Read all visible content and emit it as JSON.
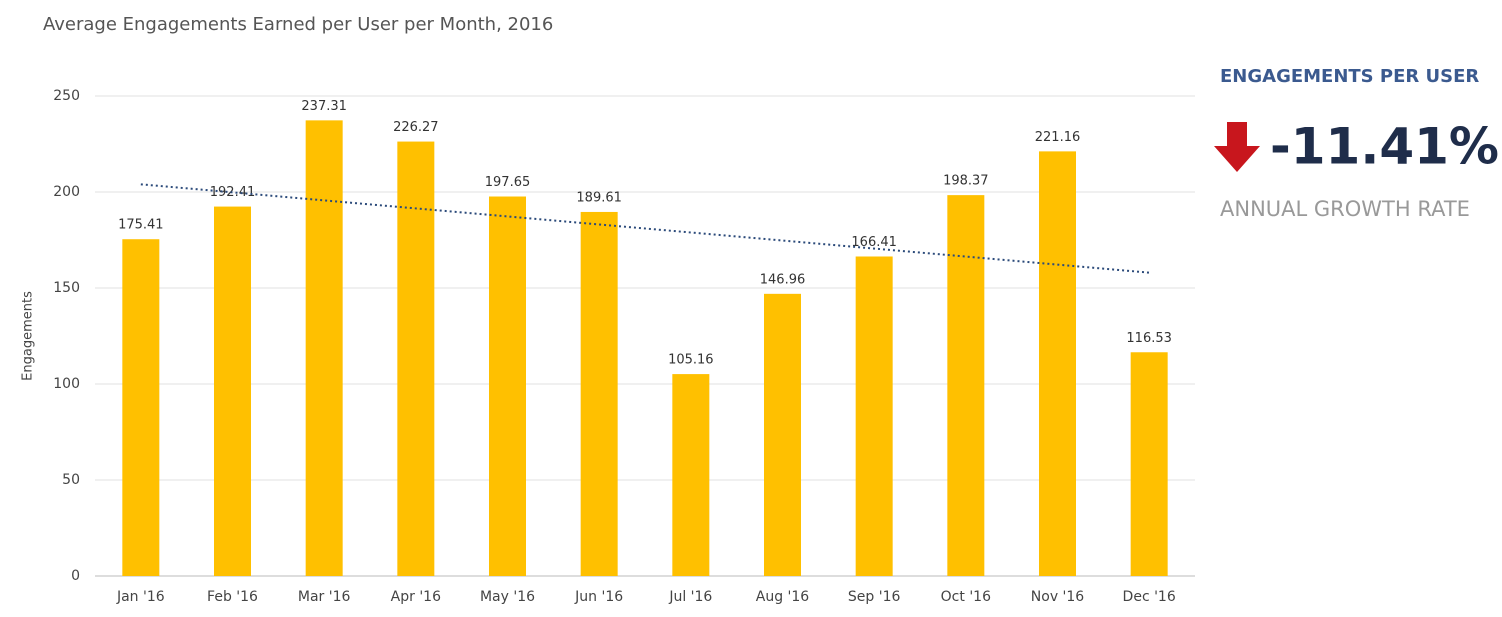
{
  "chart_data": {
    "type": "bar",
    "title": "Average Engagements Earned per User per Month, 2016",
    "y_label": "Engagements",
    "categories": [
      "Jan '16",
      "Feb '16",
      "Mar '16",
      "Apr '16",
      "May '16",
      "Jun '16",
      "Jul '16",
      "Aug '16",
      "Sep '16",
      "Oct '16",
      "Nov '16",
      "Dec '16"
    ],
    "values": [
      175.41,
      192.41,
      237.31,
      226.27,
      197.65,
      189.61,
      105.16,
      146.96,
      166.41,
      198.37,
      221.16,
      116.53
    ],
    "color": "#ffc000",
    "trendline": {
      "values": [
        204,
        158
      ],
      "color": "#2b4a7a"
    },
    "ylim": [
      0,
      250
    ],
    "yticks": [
      0,
      50,
      100,
      150,
      200,
      250
    ],
    "grid": true
  },
  "kpi": {
    "title": "ENGAGEMENTS PER USER",
    "value": "-11.41%",
    "label": "ANNUAL GROWTH RATE"
  }
}
